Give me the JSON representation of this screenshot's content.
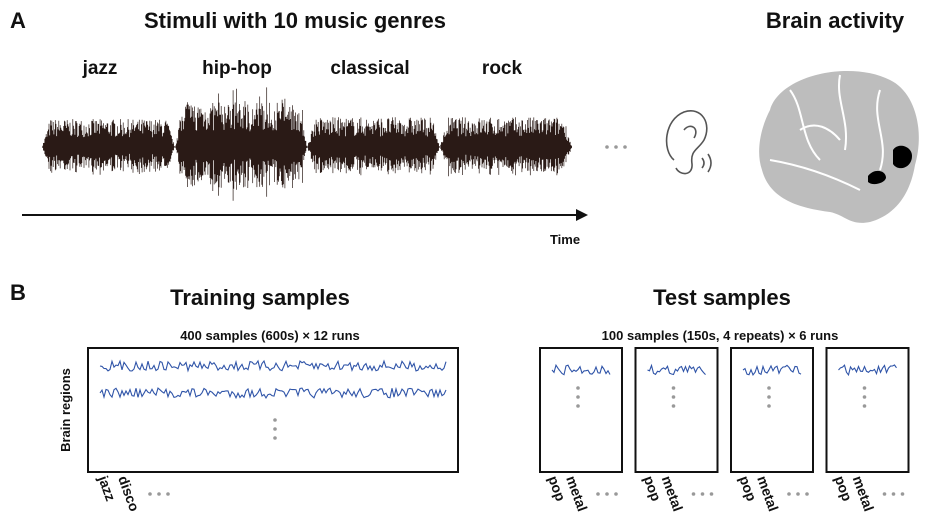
{
  "panel_a": {
    "label": "A",
    "title": "Stimuli with 10 music genres",
    "genres": [
      "jazz",
      "hip-hop",
      "classical",
      "rock"
    ],
    "axis_label": "Time",
    "brain_title": "Brain activity"
  },
  "panel_b": {
    "label": "B",
    "training": {
      "title": "Training samples",
      "subtitle": "400 samples (600s) × 12 runs",
      "y_label": "Brain regions",
      "sample_labels": [
        "jazz",
        "disco"
      ]
    },
    "test": {
      "title": "Test samples",
      "subtitle": "100 samples (150s, 4 repeats) × 6 runs",
      "blocks": [
        {
          "sample_labels": [
            "pop",
            "metal"
          ]
        },
        {
          "sample_labels": [
            "pop",
            "metal"
          ]
        },
        {
          "sample_labels": [
            "pop",
            "metal"
          ]
        },
        {
          "sample_labels": [
            "pop",
            "metal"
          ]
        }
      ]
    }
  }
}
